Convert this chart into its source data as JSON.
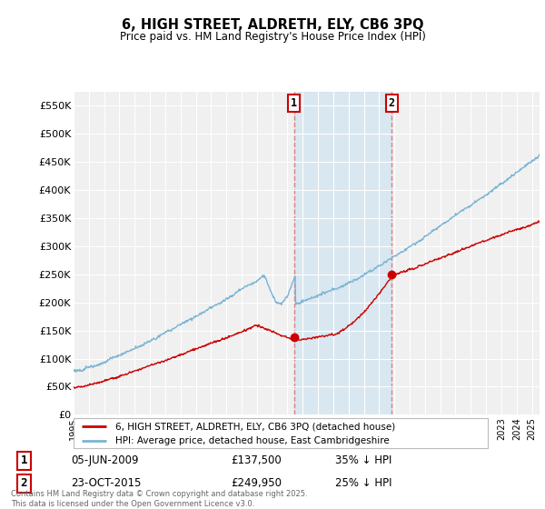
{
  "title": "6, HIGH STREET, ALDRETH, ELY, CB6 3PQ",
  "subtitle": "Price paid vs. HM Land Registry's House Price Index (HPI)",
  "ylabel_ticks": [
    "£0",
    "£50K",
    "£100K",
    "£150K",
    "£200K",
    "£250K",
    "£300K",
    "£350K",
    "£400K",
    "£450K",
    "£500K",
    "£550K"
  ],
  "ytick_values": [
    0,
    50000,
    100000,
    150000,
    200000,
    250000,
    300000,
    350000,
    400000,
    450000,
    500000,
    550000
  ],
  "ylim": [
    0,
    575000
  ],
  "xlim_start": 1995.0,
  "xlim_end": 2025.5,
  "transaction1": {
    "date": 2009.43,
    "price": 137500,
    "label": "1",
    "date_str": "05-JUN-2009",
    "pct_str": "35% ↓ HPI"
  },
  "transaction2": {
    "date": 2015.81,
    "price": 249950,
    "label": "2",
    "date_str": "23-OCT-2015",
    "pct_str": "25% ↓ HPI"
  },
  "hpi_color": "#7ab3d4",
  "price_color": "#cc0000",
  "marker_color": "#cc0000",
  "vline_color": "#e08080",
  "span_color": "#d0e4f0",
  "legend_entries": [
    "6, HIGH STREET, ALDRETH, ELY, CB6 3PQ (detached house)",
    "HPI: Average price, detached house, East Cambridgeshire"
  ],
  "footnote": "Contains HM Land Registry data © Crown copyright and database right 2025.\nThis data is licensed under the Open Government Licence v3.0.",
  "background_color": "#ffffff",
  "plot_bg_color": "#f0f0f0"
}
